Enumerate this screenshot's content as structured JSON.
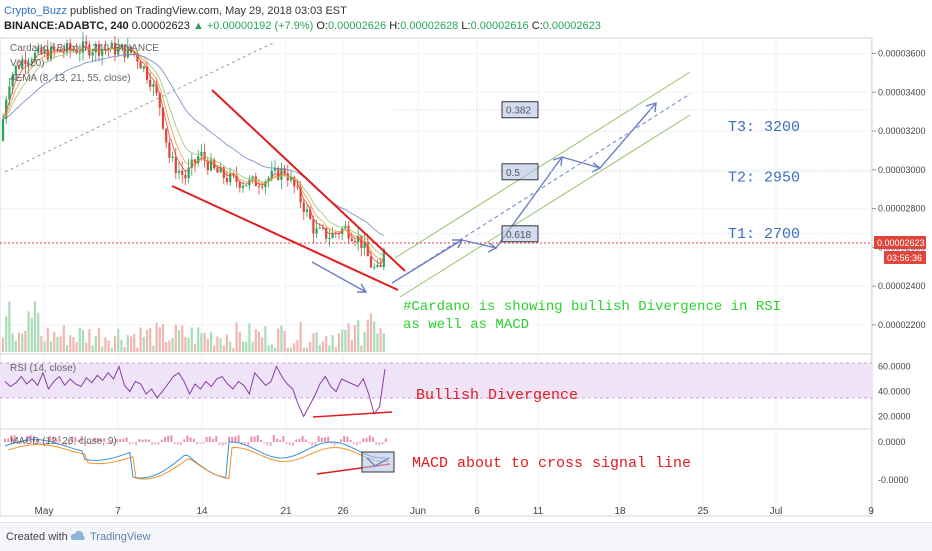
{
  "header": {
    "author": "Crypto_Buzz",
    "published": "published on TradingView.com, May 29, 2018 03:03 EST",
    "symbol": "BINANCE:ADABTC, 240",
    "price": "0.00002623",
    "change": "▲ +0.00000192 (+7.9%)",
    "o_label": "O:",
    "o_val": "0.00002626",
    "h_label": "H:",
    "h_val": "0.00002628",
    "l_label": "L:",
    "l_val": "0.00002616",
    "c_label": "C:",
    "c_val": "0.00002623"
  },
  "legends": {
    "main": "Cardano / Bitcoin, 240, BINANCE",
    "vol": "Vol (20)",
    "ema": "4EMA (8, 13, 21, 55, close)",
    "rsi": "RSI (14, close)",
    "macd": "MACD (12, 26, close, 9)"
  },
  "footer": {
    "created": "Created with",
    "brand": "TradingView"
  },
  "colors": {
    "up": "#26a65b",
    "down": "#e0443a",
    "red": "#e11d1d",
    "arrow": "#6b7fc6",
    "channel": "#9ac06e",
    "text_blue": "#3b6fc0",
    "rsi_line": "#8a3ca8",
    "macd_line": "#3a8fd8",
    "signal_line": "#f0932b"
  },
  "chart_data": [
    {
      "type": "line",
      "panel": "price",
      "title": "Cardano / Bitcoin, 240, BINANCE",
      "x_ticks": [
        "May",
        "7",
        "14",
        "21",
        "26",
        "Jun",
        "6",
        "11",
        "18",
        "25",
        "Jul",
        "9"
      ],
      "y_ticks": [
        "0.00003600",
        "0.00003400",
        "0.00003200",
        "0.00003000",
        "0.00002800",
        "0.00002600",
        "0.00002400",
        "0.00002200"
      ],
      "ylim": [
        2.05e-05,
        3.68e-05
      ],
      "last_price_label": "0.00002623",
      "countdown_label": "03:56:36",
      "price_path": [
        [
          0,
          3.15e-05
        ],
        [
          8,
          3.45e-05
        ],
        [
          15,
          3.52e-05
        ],
        [
          25,
          3.58e-05
        ],
        [
          45,
          3.6e-05
        ],
        [
          70,
          3.62e-05
        ],
        [
          95,
          3.63e-05
        ],
        [
          120,
          3.62e-05
        ],
        [
          135,
          3.6e-05
        ],
        [
          150,
          3.47e-05
        ],
        [
          160,
          3.33e-05
        ],
        [
          170,
          3.05e-05
        ],
        [
          185,
          2.96e-05
        ],
        [
          200,
          3.08e-05
        ],
        [
          215,
          2.99e-05
        ],
        [
          230,
          2.95e-05
        ],
        [
          250,
          2.93e-05
        ],
        [
          270,
          2.96e-05
        ],
        [
          285,
          3e-05
        ],
        [
          295,
          2.9e-05
        ],
        [
          305,
          2.8e-05
        ],
        [
          315,
          2.68e-05
        ],
        [
          330,
          2.66e-05
        ],
        [
          345,
          2.7e-05
        ],
        [
          360,
          2.64e-05
        ],
        [
          372,
          2.5e-05
        ],
        [
          380,
          2.46e-05
        ],
        [
          384,
          2.62e-05
        ]
      ],
      "fib_levels": [
        {
          "label": "0.382",
          "y": 3.31e-05
        },
        {
          "label": "0.5",
          "y": 2.99e-05
        },
        {
          "label": "0.618",
          "y": 2.67e-05
        }
      ],
      "targets": [
        {
          "label": "T3:  3200",
          "y": 3.23e-05
        },
        {
          "label": "T2:  2950",
          "y": 2.97e-05
        },
        {
          "label": "T1:  2700",
          "y": 2.68e-05
        }
      ],
      "annotation": "#Cardano is showing bullish Divergence in RSI as well as MACD"
    },
    {
      "type": "line",
      "panel": "rsi",
      "title": "RSI (14, close)",
      "y_ticks": [
        "60.0000",
        "40.0000",
        "20.0000"
      ],
      "ylim": [
        10,
        70
      ],
      "values": [
        48,
        44,
        47,
        52,
        46,
        50,
        45,
        55,
        42,
        48,
        52,
        45,
        50,
        46,
        44,
        51,
        47,
        53,
        49,
        55,
        50,
        60,
        45,
        40,
        48,
        46,
        38,
        42,
        35,
        40,
        46,
        52,
        55,
        48,
        38,
        46,
        42,
        48,
        44,
        50,
        52,
        46,
        42,
        48,
        45,
        38,
        55,
        50,
        45,
        48,
        60,
        52,
        46,
        42,
        30,
        20,
        28,
        36,
        46,
        52,
        44,
        40,
        50,
        48,
        46,
        44,
        50,
        38,
        22,
        28,
        58
      ],
      "annotation": "Bullish Divergence"
    },
    {
      "type": "line",
      "panel": "macd",
      "title": "MACD (12, 26, close, 9)",
      "y_ticks": [
        "0.0000",
        "-0.0000"
      ],
      "annotation": "MACD about to cross signal line"
    }
  ]
}
